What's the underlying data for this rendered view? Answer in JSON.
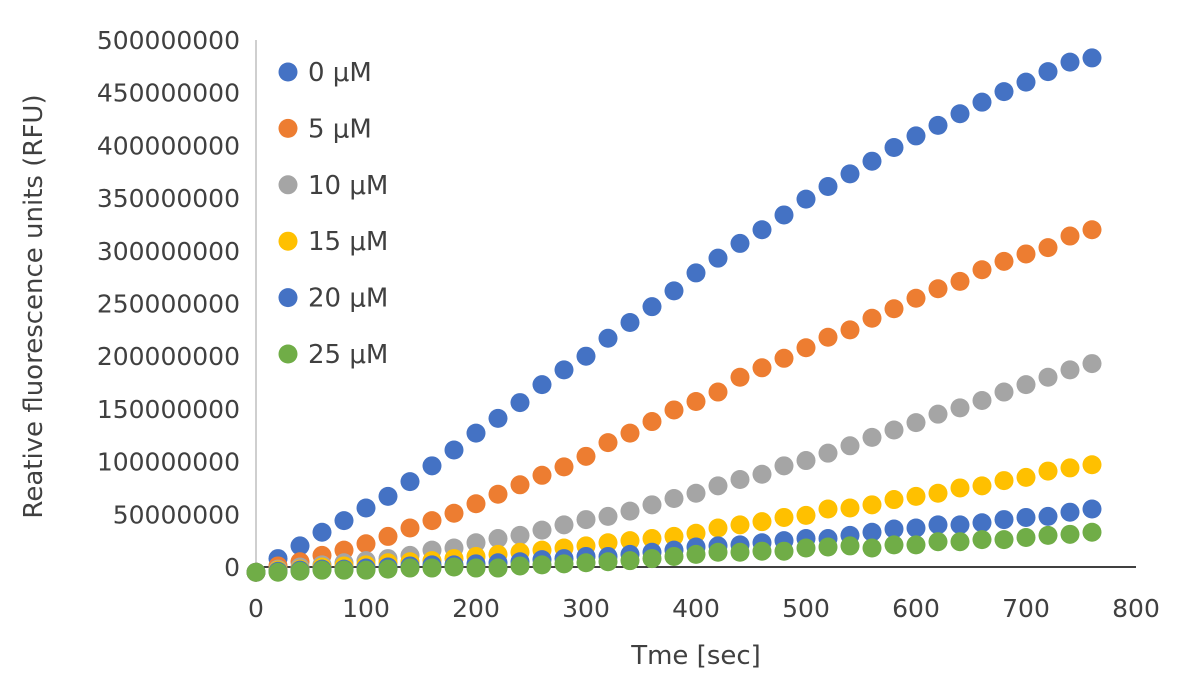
{
  "chart_data": {
    "type": "scatter",
    "title": "",
    "xlabel": "Tme [sec]",
    "ylabel": "Reative fluorescence units (RFU)",
    "xlim": [
      0,
      800
    ],
    "ylim": [
      0,
      500000000
    ],
    "x_ticks": [
      "0",
      "100",
      "200",
      "300",
      "400",
      "500",
      "600",
      "700",
      "800"
    ],
    "y_ticks": [
      "0",
      "50000000",
      "100000000",
      "150000000",
      "200000000",
      "250000000",
      "300000000",
      "350000000",
      "400000000",
      "450000000",
      "500000000"
    ],
    "grid": false,
    "legend_position": "top-left",
    "x": [
      0,
      20,
      40,
      60,
      80,
      100,
      120,
      140,
      160,
      180,
      200,
      220,
      240,
      260,
      280,
      300,
      320,
      340,
      360,
      380,
      400,
      420,
      440,
      460,
      480,
      500,
      520,
      540,
      560,
      580,
      600,
      620,
      640,
      660,
      680,
      700,
      720,
      740,
      760
    ],
    "series": [
      {
        "name": "0 μM",
        "color": "#4472C4",
        "values": [
          -5000000,
          8000000,
          20000000,
          33000000,
          44000000,
          56000000,
          67000000,
          81000000,
          96000000,
          111000000,
          127000000,
          141000000,
          156000000,
          173000000,
          187000000,
          200000000,
          217000000,
          232000000,
          247000000,
          262000000,
          279000000,
          293000000,
          307000000,
          320000000,
          334000000,
          349000000,
          361000000,
          373000000,
          385000000,
          398000000,
          409000000,
          419000000,
          430000000,
          441000000,
          451000000,
          460000000,
          470000000,
          479000000,
          483000000
        ]
      },
      {
        "name": "5 μM",
        "color": "#ED7D31",
        "values": [
          -5000000,
          1000000,
          5000000,
          11000000,
          16000000,
          22000000,
          29000000,
          37000000,
          44000000,
          51000000,
          60000000,
          69000000,
          78000000,
          87000000,
          95000000,
          105000000,
          118000000,
          127000000,
          138000000,
          149000000,
          157000000,
          166000000,
          180000000,
          189000000,
          198000000,
          208000000,
          218000000,
          225000000,
          236000000,
          245000000,
          255000000,
          264000000,
          271000000,
          282000000,
          290000000,
          297000000,
          303000000,
          314000000,
          320000000
        ]
      },
      {
        "name": "10 μM",
        "color": "#A5A5A5",
        "values": [
          -5000000,
          -2000000,
          0,
          2000000,
          4000000,
          6000000,
          8000000,
          11000000,
          16000000,
          18000000,
          23000000,
          27000000,
          30000000,
          35000000,
          40000000,
          45000000,
          48000000,
          53000000,
          59000000,
          65000000,
          70000000,
          77000000,
          83000000,
          88000000,
          96000000,
          101000000,
          108000000,
          115000000,
          123000000,
          130000000,
          137000000,
          145000000,
          151000000,
          158000000,
          166000000,
          173000000,
          180000000,
          187000000,
          193000000
        ]
      },
      {
        "name": "15 μM",
        "color": "#FFC000",
        "values": [
          -5000000,
          -3000000,
          -2000000,
          0,
          1000000,
          2000000,
          4000000,
          5000000,
          6000000,
          8000000,
          10000000,
          12000000,
          14000000,
          16000000,
          18000000,
          20000000,
          23000000,
          25000000,
          27000000,
          29000000,
          32000000,
          37000000,
          40000000,
          43000000,
          47000000,
          49000000,
          55000000,
          56000000,
          59000000,
          64000000,
          67000000,
          70000000,
          75000000,
          77000000,
          82000000,
          85000000,
          91000000,
          94000000,
          97000000
        ]
      },
      {
        "name": "20 μM",
        "color": "#4472C4",
        "values": [
          -5000000,
          -4000000,
          -3000000,
          -2000000,
          -2000000,
          -1000000,
          0,
          1000000,
          2000000,
          2000000,
          3000000,
          4000000,
          5000000,
          7000000,
          8000000,
          10000000,
          10000000,
          12000000,
          14000000,
          16000000,
          19000000,
          20000000,
          21000000,
          23000000,
          25000000,
          27000000,
          27000000,
          30000000,
          33000000,
          36000000,
          37000000,
          40000000,
          40000000,
          42000000,
          45000000,
          47000000,
          48000000,
          52000000,
          55000000
        ]
      },
      {
        "name": "25 μM",
        "color": "#70AD47",
        "values": [
          -5000000,
          -5000000,
          -4000000,
          -3000000,
          -3000000,
          -3000000,
          -2000000,
          -1000000,
          -1000000,
          0,
          -1000000,
          -1000000,
          1000000,
          2000000,
          3000000,
          4000000,
          5000000,
          6000000,
          8000000,
          10000000,
          12000000,
          14000000,
          14000000,
          15000000,
          15000000,
          18000000,
          19000000,
          20000000,
          18000000,
          21000000,
          21000000,
          24000000,
          24000000,
          26000000,
          26000000,
          28000000,
          30000000,
          31000000,
          33000000
        ]
      }
    ]
  }
}
